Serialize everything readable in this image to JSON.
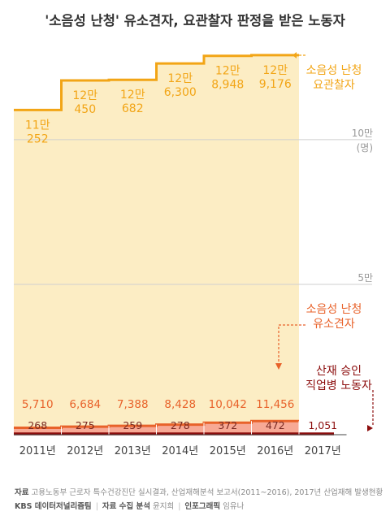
{
  "chart_data": {
    "type": "area",
    "title": "'소음성 난청' 유소견자, 요관찰자 판정을 받은 노동자",
    "categories": [
      "2011년",
      "2012년",
      "2013년",
      "2014년",
      "2015년",
      "2016년",
      "2017년"
    ],
    "ylim": [
      0,
      130000
    ],
    "y_ticks": [
      {
        "value": 100000,
        "label": "10만",
        "unit": "(명)"
      },
      {
        "value": 50000,
        "label": "5만"
      }
    ],
    "grid": true,
    "series": [
      {
        "name": "소음성 난청\n요관찰자",
        "color": "#f2a516",
        "fill": "#fcedc4",
        "values": [
          110252,
          120450,
          120682,
          126300,
          128948,
          129176,
          null
        ],
        "labels": [
          "11만\n252",
          "12만\n450",
          "12만\n682",
          "12만\n6,300",
          "12만\n8,948",
          "12만\n9,176",
          ""
        ]
      },
      {
        "name": "소음성 난청\n유소견자",
        "color": "#e8622a",
        "fill": "#f7a995",
        "values": [
          5710,
          6684,
          7388,
          8428,
          10042,
          11456,
          null
        ],
        "labels": [
          "5,710",
          "6,684",
          "7,388",
          "8,428",
          "10,042",
          "11,456",
          ""
        ]
      },
      {
        "name": "산재 승인\n직업병 노동자",
        "color": "#8c0d0d",
        "fill": "#8c0d0d",
        "values": [
          268,
          275,
          259,
          278,
          372,
          472,
          1051
        ],
        "labels": [
          "268",
          "275",
          "259",
          "278",
          "372",
          "472",
          "1,051"
        ]
      }
    ]
  },
  "footer": {
    "source_label": "자료",
    "source_text": "고용노동부 근로자 특수건강진단 실시결과, 산업재해분석 보고서(2011~2016), 2017년 산업재해 발생현황",
    "org": "KBS 데이터저널리즘팀",
    "collect_label": "자료 수집 분석",
    "collect_name": "윤지희",
    "graphic_label": "인포그래픽",
    "graphic_name": "임유나"
  }
}
